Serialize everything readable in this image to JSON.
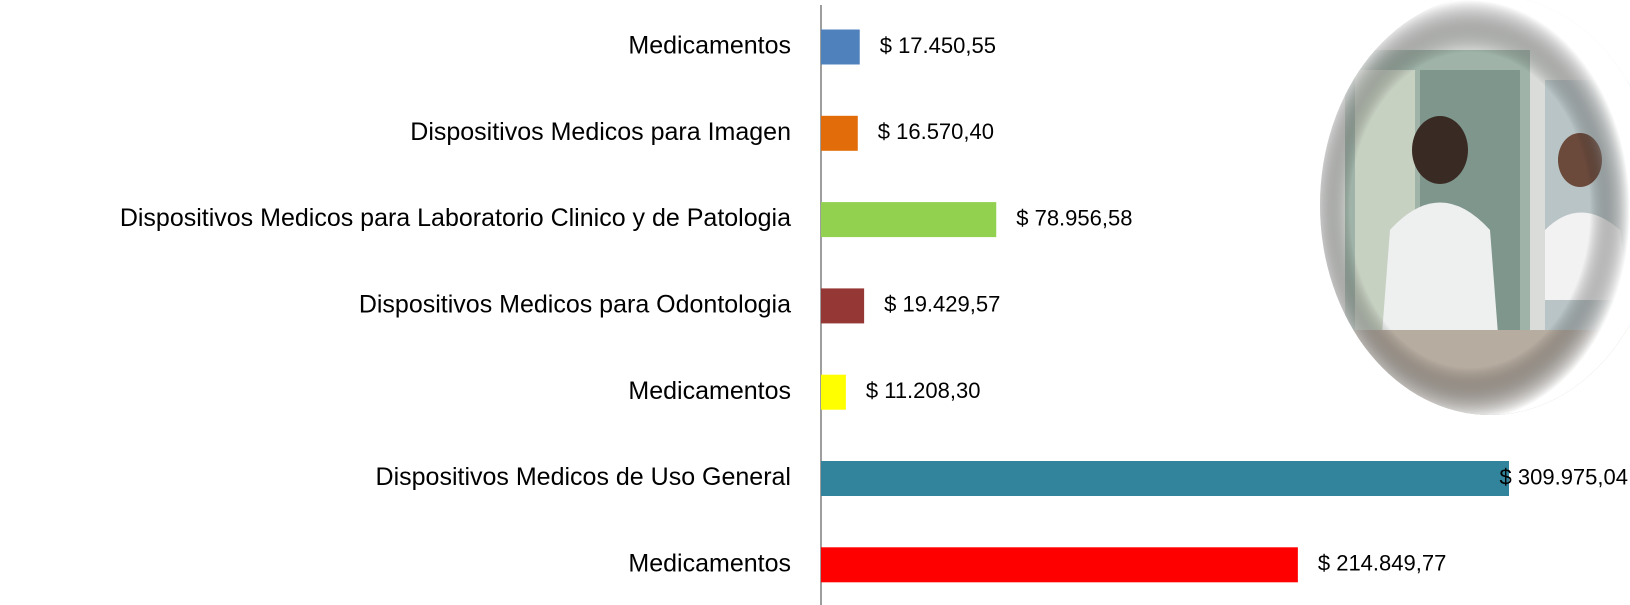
{
  "chart_data": {
    "type": "bar",
    "orientation": "horizontal",
    "categories": [
      "Medicamentos",
      "Dispositivos Medicos para Imagen",
      "Dispositivos Medicos para Laboratorio Clinico y de Patologia",
      "Dispositivos Medicos para Odontologia",
      "Medicamentos",
      "Dispositivos Medicos de Uso General",
      "Medicamentos"
    ],
    "values": [
      17450.55,
      16570.4,
      78956.58,
      19429.57,
      11208.3,
      309975.04,
      214849.77
    ],
    "value_labels": [
      "$ 17.450,55",
      "$ 16.570,40",
      "$ 78.956,58",
      "$ 19.429,57",
      "$ 11.208,30",
      "$ 309.975,04",
      "$ 214.849,77"
    ],
    "colors": [
      "#4f81bd",
      "#e36c0a",
      "#92d050",
      "#953735",
      "#ffff00",
      "#31849b",
      "#ff0000"
    ]
  }
}
